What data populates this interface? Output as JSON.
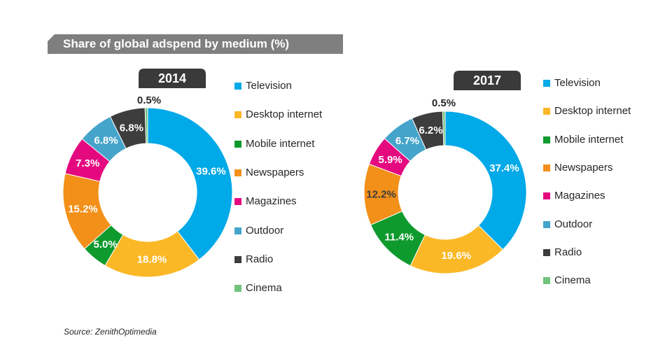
{
  "header": {
    "title": "Share of global adspend by medium (%)"
  },
  "source": "Source: ZenithOptimedia",
  "colors": {
    "Television": "#00A9E8",
    "Desktop internet": "#FBB826",
    "Mobile internet": "#0E9A2D",
    "Newspapers": "#F39019",
    "Magazines": "#E5097F",
    "Outdoor": "#45A4CA",
    "Radio": "#3D3D3D",
    "Cinema": "#71C37D"
  },
  "legend_title": "",
  "chart_data": [
    {
      "type": "pie",
      "donut": true,
      "title": "2014",
      "categories": [
        "Television",
        "Desktop internet",
        "Mobile internet",
        "Newspapers",
        "Magazines",
        "Outdoor",
        "Radio",
        "Cinema"
      ],
      "values": [
        39.6,
        18.8,
        5.0,
        15.2,
        7.3,
        6.8,
        6.8,
        0.5
      ],
      "labels": [
        "39.6%",
        "18.8%",
        "5.0%",
        "15.2%",
        "7.3%",
        "6.8%",
        "6.8%",
        "0.5%"
      ]
    },
    {
      "type": "pie",
      "donut": true,
      "title": "2017",
      "categories": [
        "Television",
        "Desktop internet",
        "Mobile internet",
        "Newspapers",
        "Magazines",
        "Outdoor",
        "Radio",
        "Cinema"
      ],
      "values": [
        37.4,
        19.6,
        11.4,
        12.2,
        5.9,
        6.7,
        6.2,
        0.5
      ],
      "labels": [
        "37.4%",
        "19.6%",
        "11.4%",
        "12.2%",
        "5.9%",
        "6.7%",
        "6.2%",
        "0.5%"
      ]
    }
  ]
}
